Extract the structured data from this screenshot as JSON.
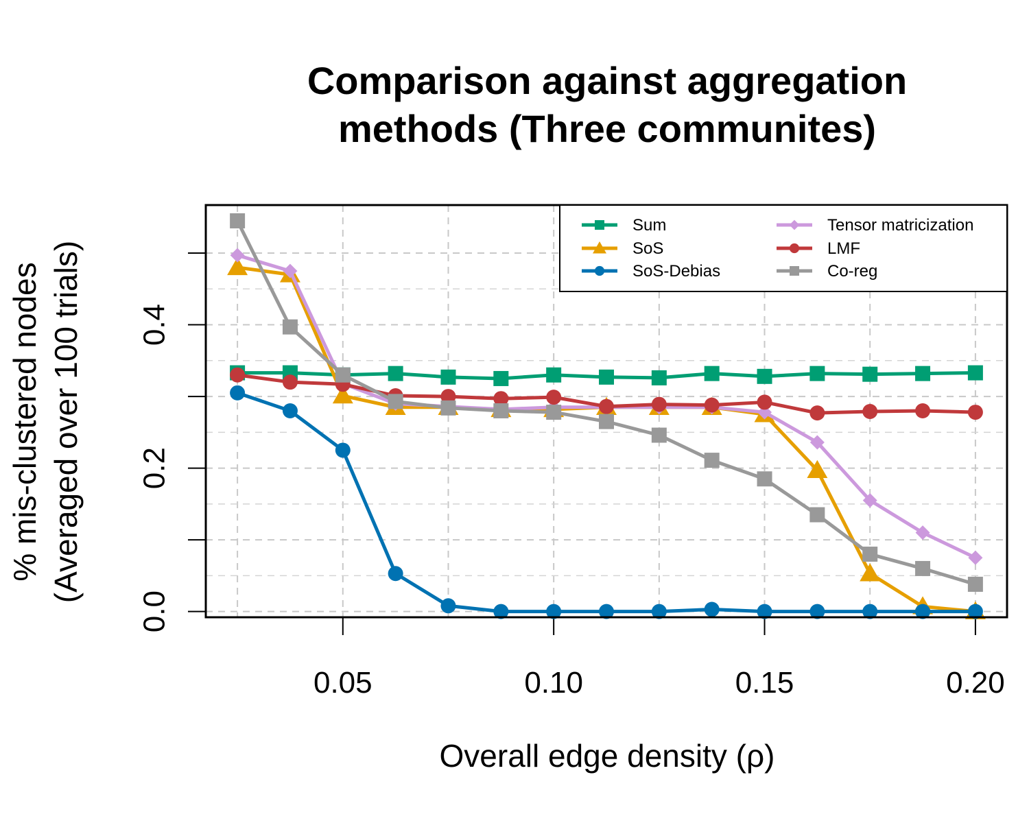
{
  "chart_data": {
    "type": "line",
    "title_lines": [
      "Comparison against aggregation",
      "methods (Three communites)"
    ],
    "xlabel": "Overall edge density (ρ)",
    "ylabel_lines": [
      "% mis-clustered nodes",
      "(Averaged over 100 trials)"
    ],
    "xlim": [
      0.0175,
      0.2075
    ],
    "ylim": [
      -0.008,
      0.567
    ],
    "x_ticks": [
      0.05,
      0.1,
      0.15,
      0.2
    ],
    "x_tick_labels": [
      "0.05",
      "0.10",
      "0.15",
      "0.20"
    ],
    "y_ticks": [
      0.0,
      0.2,
      0.4
    ],
    "y_tick_labels": [
      "0.0",
      "0.2",
      "0.4"
    ],
    "y_minor_ticks": [
      0.1,
      0.3,
      0.5
    ],
    "grid_x": [
      0.025,
      0.05,
      0.075,
      0.1,
      0.125,
      0.15,
      0.175,
      0.2
    ],
    "grid_y": [
      0.0,
      0.1,
      0.2,
      0.3,
      0.4,
      0.5
    ],
    "legend_position": "top-right",
    "x": [
      0.025,
      0.0375,
      0.05,
      0.0625,
      0.075,
      0.0875,
      0.1,
      0.1125,
      0.125,
      0.1375,
      0.15,
      0.1625,
      0.175,
      0.1875,
      0.2
    ],
    "series": [
      {
        "name": "Sum",
        "color": "#009E73",
        "marker": "square",
        "values": [
          0.333,
          0.333,
          0.33,
          0.332,
          0.327,
          0.325,
          0.33,
          0.327,
          0.326,
          0.332,
          0.328,
          0.332,
          0.331,
          0.332,
          0.333
        ]
      },
      {
        "name": "SoS",
        "color": "#E69F00",
        "marker": "triangle",
        "values": [
          0.48,
          0.47,
          0.301,
          0.285,
          0.285,
          0.282,
          0.282,
          0.285,
          0.285,
          0.285,
          0.275,
          0.197,
          0.053,
          0.007,
          0.0
        ]
      },
      {
        "name": "SoS-Debias",
        "color": "#0072B2",
        "marker": "circle",
        "values": [
          0.305,
          0.28,
          0.225,
          0.053,
          0.008,
          0.0,
          0.0,
          0.0,
          0.0,
          0.003,
          0.0,
          0.0,
          0.0,
          0.0,
          0.0
        ]
      },
      {
        "name": "Tensor matricization",
        "color": "#CC99DD",
        "marker": "diamond",
        "values": [
          0.497,
          0.475,
          0.318,
          0.29,
          0.286,
          0.282,
          0.285,
          0.285,
          0.285,
          0.285,
          0.278,
          0.236,
          0.155,
          0.11,
          0.075
        ]
      },
      {
        "name": "LMF",
        "color": "#C0393B",
        "marker": "circle",
        "values": [
          0.33,
          0.32,
          0.317,
          0.301,
          0.3,
          0.297,
          0.299,
          0.286,
          0.289,
          0.288,
          0.292,
          0.277,
          0.279,
          0.28,
          0.278
        ]
      },
      {
        "name": "Co-reg",
        "color": "#999999",
        "marker": "square",
        "values": [
          0.545,
          0.397,
          0.33,
          0.293,
          0.284,
          0.28,
          0.278,
          0.265,
          0.246,
          0.211,
          0.185,
          0.135,
          0.08,
          0.06,
          0.038
        ]
      }
    ]
  }
}
